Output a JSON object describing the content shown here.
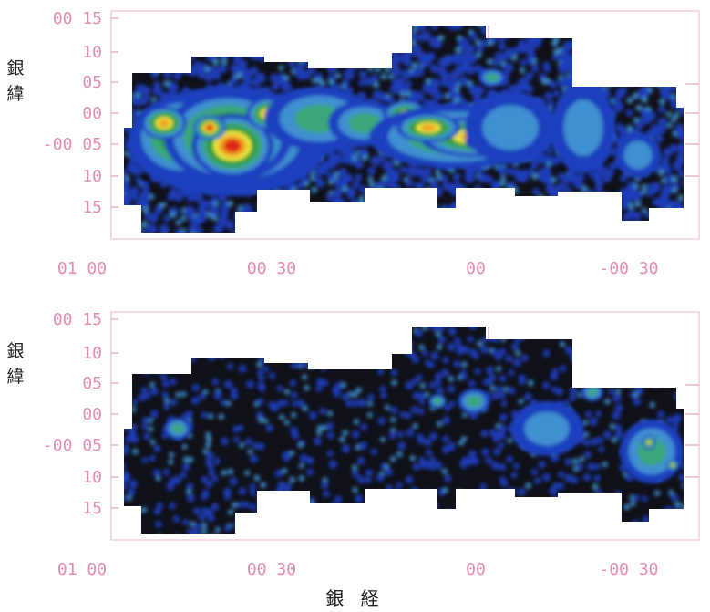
{
  "chart_data": [
    {
      "type": "heatmap",
      "panel": "top",
      "ylabel": "銀緯",
      "y_tick_labels": [
        "00 15",
        "10",
        "05",
        "00",
        "-00 05",
        "10",
        "15"
      ],
      "x_tick_labels": [
        "01 00",
        "00 30",
        "00",
        "-00 30"
      ],
      "colorscale": [
        "#101018",
        "#1f3fbf",
        "#3f8fd0",
        "#3aa77a",
        "#2f9a3a",
        "#e6e640",
        "#f0a020",
        "#e02818"
      ],
      "grid": false
    },
    {
      "type": "heatmap",
      "panel": "bottom",
      "ylabel": "銀緯",
      "y_tick_labels": [
        "00 15",
        "10",
        "05",
        "00",
        "-00 05",
        "10",
        "15"
      ],
      "x_tick_labels": [
        "01 00",
        "00 30",
        "00",
        "-00 30"
      ],
      "colorscale": [
        "#101018",
        "#1f3fbf",
        "#3f8fd0",
        "#3aa77a",
        "#2f9a3a",
        "#e6e640",
        "#f0a020",
        "#e02818"
      ],
      "grid": false
    }
  ],
  "xlabel": "銀 経"
}
